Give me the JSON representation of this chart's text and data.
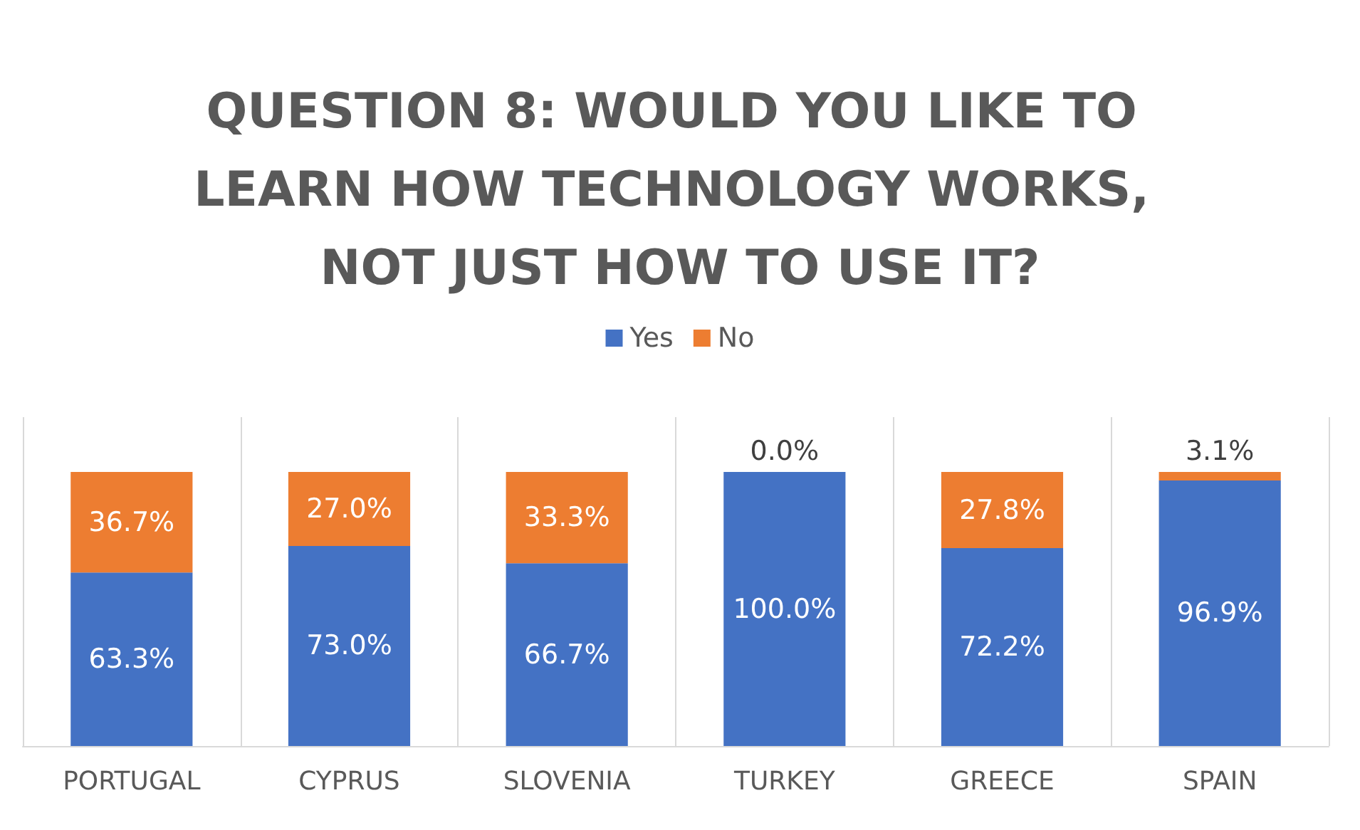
{
  "chart_data": {
    "type": "bar",
    "title": "QUESTION 8: WOULD YOU LIKE TO LEARN HOW TECHNOLOGY WORKS, NOT JUST HOW TO USE IT?",
    "categories": [
      "PORTUGAL",
      "CYPRUS",
      "SLOVENIA",
      "TURKEY",
      "GREECE",
      "SPAIN"
    ],
    "stacked": true,
    "ylim": [
      0,
      120
    ],
    "tick_labels": "x",
    "grid": "x",
    "legend": "top",
    "series": [
      {
        "name": "Yes",
        "color": "#4472c4",
        "values": [
          63.3,
          73.0,
          66.7,
          100.0,
          72.2,
          96.9
        ],
        "value_labels": [
          "63.3%",
          "73.0%",
          "66.7%",
          "100.0%",
          "72.2%",
          "96.9%"
        ]
      },
      {
        "name": "No",
        "color": "#ed7d31",
        "values": [
          36.7,
          27.0,
          33.3,
          0.0,
          27.8,
          3.1
        ],
        "value_labels": [
          "36.7%",
          "27.0%",
          "33.3%",
          "0.0%",
          "27.8%",
          "3.1%"
        ]
      }
    ]
  }
}
